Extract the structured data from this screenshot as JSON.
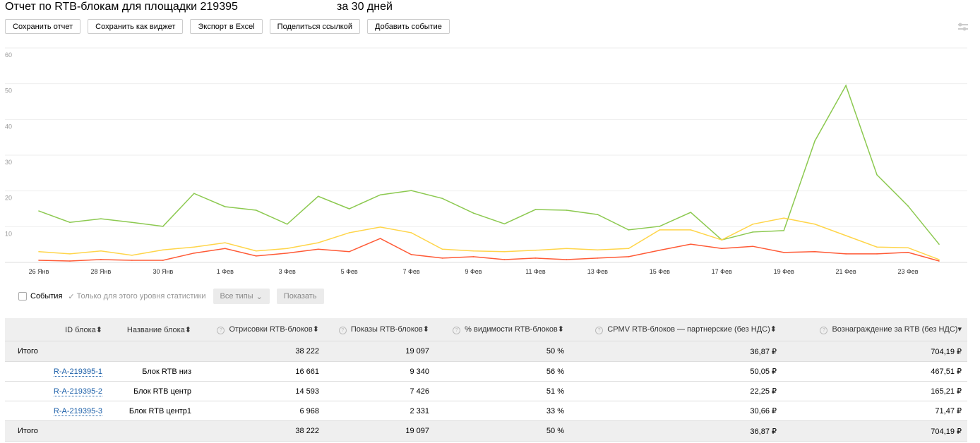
{
  "header": {
    "title": "Отчет по RTB-блокам для площадки 219395",
    "period": "за 30 дней"
  },
  "toolbar": [
    "Сохранить отчет",
    "Сохранить как виджет",
    "Экспорт в Excel",
    "Поделиться ссылкой",
    "Добавить событие"
  ],
  "controls": {
    "events": "События",
    "only_level": "Только для этого уровня статистики",
    "all_types": "Все типы",
    "show": "Показать"
  },
  "colors": {
    "green": "#8cc950",
    "yellow": "#ffd54a",
    "red": "#ff5a36"
  },
  "chart_data": {
    "type": "line",
    "ylim": [
      0,
      60
    ],
    "yticks": [
      60,
      50,
      40,
      30,
      20,
      10
    ],
    "x": [
      "26 Янв",
      "27 Янв",
      "28 Янв",
      "29 Янв",
      "30 Янв",
      "31 Янв",
      "1 Фев",
      "2 Фев",
      "3 Фев",
      "4 Фев",
      "5 Фев",
      "6 Фев",
      "7 Фев",
      "8 Фев",
      "9 Фев",
      "10 Фев",
      "11 Фев",
      "12 Фев",
      "13 Фев",
      "14 Фев",
      "15 Фев",
      "16 Фев",
      "17 Фев",
      "18 Фев",
      "19 Фев",
      "20 Фев",
      "21 Фев",
      "22 Фев",
      "23 Фев",
      "24 Фев"
    ],
    "xticks": [
      "26 Янв",
      "28 Янв",
      "30 Янв",
      "1 Фев",
      "3 Фев",
      "5 Фев",
      "7 Фев",
      "9 Фев",
      "11 Фев",
      "13 Фев",
      "15 Фев",
      "17 Фев",
      "19 Фев",
      "21 Фев",
      "23 Фев"
    ],
    "series": [
      {
        "name": "green",
        "color": "#8cc950",
        "values": [
          14.4,
          11.2,
          12.2,
          11.2,
          10.1,
          19.3,
          15.6,
          14.6,
          10.7,
          18.5,
          15,
          18.9,
          20.1,
          17.9,
          13.8,
          10.8,
          14.8,
          14.6,
          13.4,
          9.1,
          10.1,
          14,
          6.3,
          8.5,
          8.9,
          34,
          49.5,
          24.5,
          15.8,
          5.1
        ]
      },
      {
        "name": "yellow",
        "color": "#ffd54a",
        "values": [
          3,
          2.4,
          3.2,
          2,
          3.5,
          4.3,
          5.5,
          3.2,
          3.9,
          5.5,
          8.3,
          9.9,
          8.3,
          3.7,
          3.2,
          3,
          3.4,
          3.9,
          3.5,
          3.9,
          9.1,
          9.1,
          6.3,
          10.7,
          12.4,
          10.7,
          7.5,
          4.3,
          4.1,
          0.8
        ]
      },
      {
        "name": "red",
        "color": "#ff5a36",
        "values": [
          0.6,
          0.4,
          0.8,
          0.6,
          0.6,
          2.6,
          3.9,
          1.8,
          2.6,
          3.7,
          3,
          6.7,
          2.2,
          1.2,
          1.6,
          0.8,
          1.2,
          0.8,
          1.2,
          1.6,
          3.4,
          5.1,
          3.9,
          4.5,
          2.8,
          3,
          2.4,
          2.4,
          2.8,
          0.4
        ]
      }
    ]
  },
  "table": {
    "headers": [
      "ID блока",
      "Название блока",
      "Отрисовки RTB-блоков",
      "Показы RTB-блоков",
      "% видимости RTB-блоков",
      "CPMV RTB-блоков — партнерские (без НДС)",
      "Вознаграждение за RTB (без НДС)"
    ],
    "total": {
      "label": "Итого",
      "renders": "38 222",
      "shows": "19 097",
      "visibility": "50 %",
      "cpmv": "36,87 ₽",
      "reward": "704,19 ₽"
    },
    "rows": [
      {
        "id": "R-A-219395-1",
        "name": "Блок RTB низ",
        "renders": "16 661",
        "shows": "9 340",
        "visibility": "56 %",
        "cpmv": "50,05 ₽",
        "reward": "467,51 ₽"
      },
      {
        "id": "R-A-219395-2",
        "name": "Блок RTB центр",
        "renders": "14 593",
        "shows": "7 426",
        "visibility": "51 %",
        "cpmv": "22,25 ₽",
        "reward": "165,21 ₽"
      },
      {
        "id": "R-A-219395-3",
        "name": "Блок RTB центр1",
        "renders": "6 968",
        "shows": "2 331",
        "visibility": "33 %",
        "cpmv": "30,66 ₽",
        "reward": "71,47 ₽"
      }
    ]
  }
}
